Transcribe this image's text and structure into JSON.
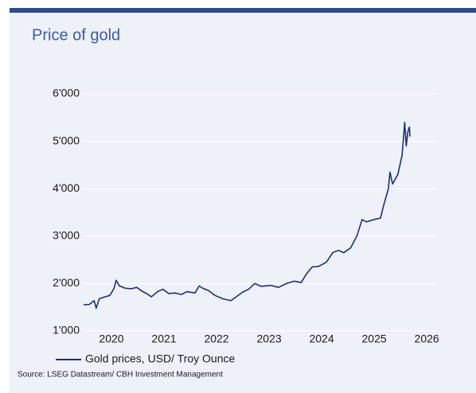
{
  "chart_data": {
    "type": "line",
    "title": "Price of gold",
    "x": [
      2019.47,
      2019.58,
      2019.67,
      2019.71,
      2019.77,
      2019.88,
      2019.97,
      2020.05,
      2020.09,
      2020.15,
      2020.27,
      2020.38,
      2020.48,
      2020.58,
      2020.68,
      2020.76,
      2020.88,
      2020.98,
      2021.09,
      2021.21,
      2021.33,
      2021.44,
      2021.59,
      2021.67,
      2021.74,
      2021.85,
      2021.97,
      2022.12,
      2022.27,
      2022.35,
      2022.5,
      2022.61,
      2022.73,
      2022.85,
      2023.03,
      2023.18,
      2023.33,
      2023.48,
      2023.61,
      2023.71,
      2023.82,
      2023.94,
      2024.09,
      2024.21,
      2024.32,
      2024.42,
      2024.55,
      2024.67,
      2024.77,
      2024.85,
      2025.0,
      2025.12,
      2025.18,
      2025.27,
      2025.3,
      2025.35,
      2025.45,
      2025.53,
      2025.56,
      2025.58,
      2025.61,
      2025.64,
      2025.67,
      2025.68
    ],
    "series": [
      {
        "name": "Gold prices, USD/ Troy Ounce",
        "color": "#1f2f7a",
        "values": [
          1550,
          1560,
          1640,
          1480,
          1680,
          1720,
          1750,
          1900,
          2070,
          1950,
          1900,
          1890,
          1920,
          1840,
          1780,
          1720,
          1830,
          1880,
          1790,
          1800,
          1770,
          1830,
          1800,
          1950,
          1900,
          1850,
          1750,
          1680,
          1640,
          1700,
          1820,
          1880,
          2000,
          1940,
          1960,
          1920,
          2000,
          2050,
          2020,
          2200,
          2350,
          2360,
          2450,
          2650,
          2700,
          2650,
          2750,
          3000,
          3350,
          3300,
          3350,
          3380,
          3650,
          4000,
          4350,
          4100,
          4300,
          4700,
          5100,
          5400,
          4900,
          5200,
          5300,
          5100
        ]
      }
    ],
    "xlim": [
      2019.47,
      2026.18
    ],
    "xticks": [
      2020,
      2021,
      2022,
      2023,
      2024,
      2025,
      2026
    ],
    "ylim": [
      1000,
      6000
    ],
    "yticks": [
      {
        "value": 1000,
        "label": "1'000"
      },
      {
        "value": 2000,
        "label": "2'000"
      },
      {
        "value": 3000,
        "label": "3'000"
      },
      {
        "value": 4000,
        "label": "4'000"
      },
      {
        "value": 5000,
        "label": "5'000"
      },
      {
        "value": 6000,
        "label": "6'000"
      }
    ],
    "grid": true,
    "legend": "bottom-left",
    "source": "Source: LSEG Datastream/ CBH Investment Management"
  }
}
